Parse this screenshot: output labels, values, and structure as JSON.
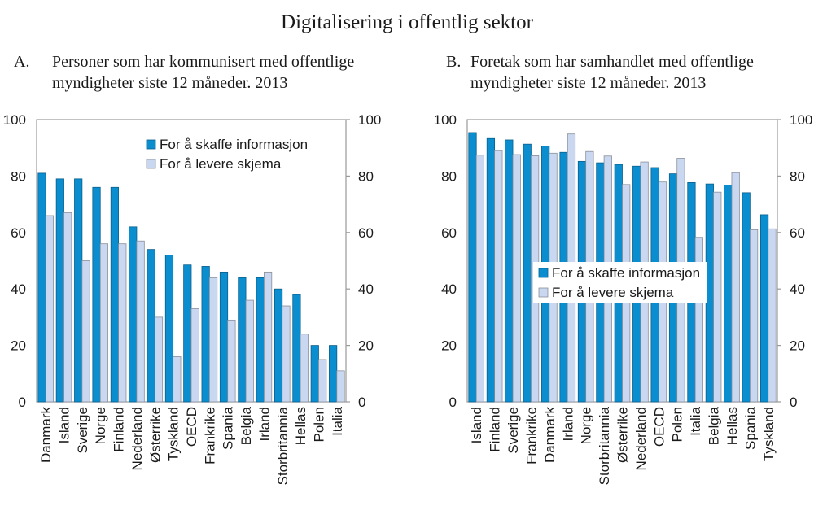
{
  "main_title": "Digitalisering i offentlig sektor",
  "colors": {
    "series1": "#0b8ed0",
    "series1_stroke": "#0a5f8c",
    "series2": "#c9d8f0",
    "series2_stroke": "#8a8f99",
    "axis": "#9a9a9a",
    "text": "#1a1a1a"
  },
  "chart_data": [
    {
      "type": "bar",
      "panel_letter": "A.",
      "title": "Personer som har kommunisert med offentlige myndigheter siste 12 måneder. 2013",
      "title_lines": [
        "Personer som har kommunisert med offentlige",
        "myndigheter siste 12 måneder. 2013"
      ],
      "xlabel": "",
      "ylabel": "",
      "ylim": [
        0,
        100
      ],
      "yticks": [
        0,
        20,
        40,
        60,
        80,
        100
      ],
      "y_axis_sides": [
        "left",
        "right"
      ],
      "grid": false,
      "legend_position": "top-right",
      "categories": [
        "Danmark",
        "Island",
        "Sverige",
        "Norge",
        "Finland",
        "Nederland",
        "Østerrike",
        "Tyskland",
        "OECD",
        "Frankrike",
        "Spania",
        "Belgia",
        "Irland",
        "Storbritannia",
        "Hellas",
        "Polen",
        "Italia"
      ],
      "series": [
        {
          "name": "For å skaffe informasjon",
          "values": [
            81,
            79,
            79,
            76,
            76,
            62,
            54,
            52,
            48.5,
            48,
            46,
            44,
            44,
            40,
            38,
            20,
            20
          ]
        },
        {
          "name": "For å levere skjema",
          "values": [
            66,
            67,
            50,
            56,
            56,
            57,
            30,
            16,
            33,
            44,
            29,
            36,
            46,
            34,
            24,
            15,
            11
          ]
        }
      ]
    },
    {
      "type": "bar",
      "panel_letter": "B.",
      "title": "Foretak som har samhandlet med offentlige myndigheter siste 12 måneder. 2013",
      "title_lines": [
        "Foretak som har samhandlet med offentlige",
        "myndigheter siste 12 måneder. 2013"
      ],
      "xlabel": "",
      "ylabel": "",
      "ylim": [
        0,
        100
      ],
      "yticks": [
        0,
        20,
        40,
        60,
        80,
        100
      ],
      "y_axis_sides": [
        "left",
        "right"
      ],
      "grid": false,
      "legend_position": "center",
      "categories": [
        "Island",
        "Finland",
        "Sverige",
        "Frankrike",
        "Danmark",
        "Irland",
        "Norge",
        "Storbritannia",
        "Østerrike",
        "Nederland",
        "OECD",
        "Polen",
        "Italia",
        "Belgia",
        "Hellas",
        "Spania",
        "Tyskland"
      ],
      "series": [
        {
          "name": "For å skaffe informasjon",
          "values": [
            95.4,
            93.3,
            92.8,
            91.3,
            90.6,
            88.4,
            85.2,
            84.7,
            84.1,
            83.5,
            83,
            80.8,
            77.7,
            77.2,
            76.8,
            74.1,
            66.3
          ]
        },
        {
          "name": "For å levere skjema",
          "values": [
            87.4,
            89,
            87.6,
            87.2,
            88.1,
            94.9,
            88.7,
            87.1,
            77,
            85,
            77.9,
            86.3,
            58.3,
            74.3,
            81.2,
            61,
            61.3
          ]
        }
      ]
    }
  ]
}
